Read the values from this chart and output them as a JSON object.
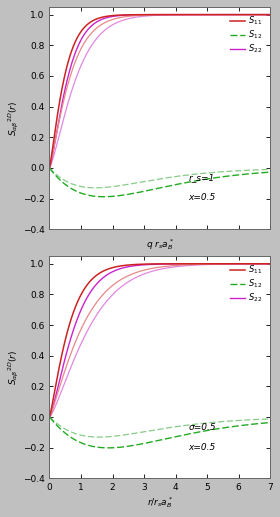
{
  "top_xlabel": "q r_s a_B",
  "bottom_xlabel": "r/r_s a_B",
  "top_annot1": "r_s=1",
  "top_annot2": "x=0.5",
  "bot_annot1": "σ=0.5",
  "bot_annot2": "x=0.5",
  "xlim": [
    0,
    7
  ],
  "ylim": [
    -0.4,
    1.05
  ],
  "yticks": [
    -0.4,
    -0.2,
    0.0,
    0.2,
    0.4,
    0.6,
    0.8,
    1.0
  ],
  "xticks": [
    0,
    1,
    2,
    3,
    4,
    5,
    6,
    7
  ],
  "color_S11_dark": "#cc2222",
  "color_S11_light": "#e88888",
  "color_S12_dark": "#22aa22",
  "color_S12_light": "#88cc88",
  "color_S22_dark": "#cc22cc",
  "color_S22_light": "#e088e0",
  "plot_bg": "#ffffff",
  "fig_bg": "#c0c0c0"
}
